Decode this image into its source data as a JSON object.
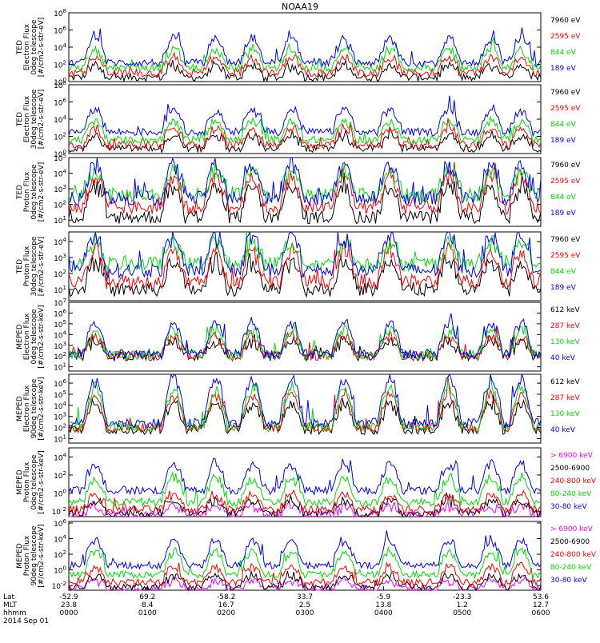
{
  "chart_data": {
    "type": "line",
    "title": "NOAA19",
    "x_ticks": [
      {
        "lat": "-52.9",
        "mlt": "23.8",
        "hhmm": "0000"
      },
      {
        "lat": "69.2",
        "mlt": "8.4",
        "hhmm": "0100"
      },
      {
        "lat": "-58.2",
        "mlt": "16.7",
        "hhmm": "0200"
      },
      {
        "lat": "33.7",
        "mlt": "2.5",
        "hhmm": "0300"
      },
      {
        "lat": "-5.9",
        "mlt": "13.8",
        "hhmm": "0400"
      },
      {
        "lat": "-23.3",
        "mlt": "1.2",
        "hhmm": "0500"
      },
      {
        "lat": "53.6",
        "mlt": "12.7",
        "hhmm": "0600"
      }
    ],
    "x_row_labels": [
      "Lat",
      "MLT",
      "hhmm"
    ],
    "date_label": "2014 Sep 01",
    "x_range_minutes": [
      0,
      360
    ],
    "log_scale_y": true,
    "panels": [
      {
        "ylabel": [
          "TED",
          "Electron Flux",
          "0deg telescope",
          "[#/cm2-s-str-eV]"
        ],
        "y_ticks": [
          "10^0",
          "10^2",
          "10^4",
          "10^6",
          "10^8"
        ],
        "y_log_range": [
          0,
          8
        ],
        "baseline": 2.2,
        "series": [
          {
            "name": "7960 eV",
            "color": "#000000",
            "base": 0.5,
            "amp": 1.2
          },
          {
            "name": "2595 eV",
            "color": "#ff0000",
            "base": 1.0,
            "amp": 1.6
          },
          {
            "name": "844 eV",
            "color": "#00dd00",
            "base": 1.6,
            "amp": 2.0
          },
          {
            "name": "189 eV",
            "color": "#0000ff",
            "base": 2.2,
            "amp": 2.6
          }
        ]
      },
      {
        "ylabel": [
          "TED",
          "Electron Flux",
          "30deg telescope",
          "[#/cm2-s-str-eV]"
        ],
        "y_ticks": [
          "10^0",
          "10^2",
          "10^4",
          "10^6",
          "10^8"
        ],
        "y_log_range": [
          0,
          8
        ],
        "baseline": 2.5,
        "series": [
          {
            "name": "7960 eV",
            "color": "#000000",
            "base": 0.6,
            "amp": 1.3
          },
          {
            "name": "2595 eV",
            "color": "#ff0000",
            "base": 1.0,
            "amp": 1.7
          },
          {
            "name": "844 eV",
            "color": "#00dd00",
            "base": 1.6,
            "amp": 2.0
          },
          {
            "name": "189 eV",
            "color": "#0000ff",
            "base": 2.5,
            "amp": 2.5
          }
        ]
      },
      {
        "ylabel": [
          "TED",
          "Proton Flux",
          "0deg telescope",
          "[#/cm2-s-str-eV]"
        ],
        "y_ticks": [
          "10^1",
          "10^2",
          "10^3",
          "10^4",
          "10^5"
        ],
        "y_log_range": [
          0.6,
          5
        ],
        "baseline": 2.3,
        "series": [
          {
            "name": "7960 eV",
            "color": "#000000",
            "base": 1.2,
            "amp": 1.8
          },
          {
            "name": "2595 eV",
            "color": "#ff0000",
            "base": 1.8,
            "amp": 1.8
          },
          {
            "name": "844 eV",
            "color": "#00dd00",
            "base": 2.6,
            "amp": 1.3
          },
          {
            "name": "189 eV",
            "color": "#0000ff",
            "base": 2.4,
            "amp": 2.0
          }
        ]
      },
      {
        "ylabel": [
          "TED",
          "Proton Flux",
          "30deg telescope",
          "[#/cm2-s-str-eV]"
        ],
        "y_ticks": [
          "10^1",
          "10^2",
          "10^3",
          "10^4"
        ],
        "y_log_range": [
          0.3,
          4.6
        ],
        "baseline": 2.3,
        "series": [
          {
            "name": "7960 eV",
            "color": "#000000",
            "base": 1.0,
            "amp": 1.6
          },
          {
            "name": "2595 eV",
            "color": "#ff0000",
            "base": 1.5,
            "amp": 1.8
          },
          {
            "name": "844 eV",
            "color": "#00dd00",
            "base": 2.6,
            "amp": 1.2
          },
          {
            "name": "189 eV",
            "color": "#0000ff",
            "base": 2.2,
            "amp": 2.0
          }
        ]
      },
      {
        "ylabel": [
          "MEPED",
          "Electron Flux",
          "0deg telescope",
          "[#/cm2-s-str-keV]"
        ],
        "y_ticks": [
          "10^1",
          "10^2",
          "10^3",
          "10^4",
          "10^5",
          "10^6",
          "10^7"
        ],
        "y_log_range": [
          0.6,
          7
        ],
        "baseline": 2.2,
        "series": [
          {
            "name": "612 keV",
            "color": "#000000",
            "base": 2.0,
            "amp": 1.2
          },
          {
            "name": "287 keV",
            "color": "#ff0000",
            "base": 2.0,
            "amp": 1.7
          },
          {
            "name": "130 keV",
            "color": "#00dd00",
            "base": 2.1,
            "amp": 2.2
          },
          {
            "name": "40 keV",
            "color": "#0000ff",
            "base": 2.2,
            "amp": 2.8
          }
        ]
      },
      {
        "ylabel": [
          "MEPED",
          "Electron Flux",
          "90deg telescope",
          "[#/cm2-s-str-keV]"
        ],
        "y_ticks": [
          "10^1",
          "10^2",
          "10^3",
          "10^4",
          "10^5",
          "10^6"
        ],
        "y_log_range": [
          0.6,
          6.8
        ],
        "baseline": 1.8,
        "series": [
          {
            "name": "612 keV",
            "color": "#000000",
            "base": 1.8,
            "amp": 2.2
          },
          {
            "name": "287 keV",
            "color": "#ff0000",
            "base": 2.0,
            "amp": 2.8
          },
          {
            "name": "130 keV",
            "color": "#00dd00",
            "base": 2.1,
            "amp": 3.3
          },
          {
            "name": "40 keV",
            "color": "#0000ff",
            "base": 2.4,
            "amp": 3.8
          }
        ]
      },
      {
        "ylabel": [
          "MEPED",
          "Proton Flux",
          "0deg telescope",
          "[#/cm2-s-str-keV]"
        ],
        "y_ticks": [
          "10^-2",
          "10^0",
          "10^2",
          "10^4"
        ],
        "y_log_range": [
          -2.6,
          5
        ],
        "baseline": -1.0,
        "series": [
          {
            "name": "> 6900 keV",
            "color": "#ff00ff",
            "base": -2.4,
            "amp": 0.8
          },
          {
            "name": "2500-6900",
            "color": "#000000",
            "base": -2.2,
            "amp": 1.2
          },
          {
            "name": "240-800 keV",
            "color": "#ff0000",
            "base": -1.8,
            "amp": 1.5
          },
          {
            "name": "80-240 keV",
            "color": "#00dd00",
            "base": -1.0,
            "amp": 2.5
          },
          {
            "name": "30-80 keV",
            "color": "#0000ff",
            "base": 0.3,
            "amp": 2.8
          }
        ]
      },
      {
        "ylabel": [
          "MEPED",
          "Proton Flux",
          "90deg telescope",
          "[#/cm2-s-str-keV]"
        ],
        "y_ticks": [
          "10^-2",
          "10^0",
          "10^2",
          "10^4",
          "10^6"
        ],
        "y_log_range": [
          -2.6,
          6.2
        ],
        "baseline": -0.4,
        "series": [
          {
            "name": "> 6900 keV",
            "color": "#ff00ff",
            "base": -2.4,
            "amp": 0.9
          },
          {
            "name": "2500-6900",
            "color": "#000000",
            "base": -2.2,
            "amp": 1.3
          },
          {
            "name": "240-800 keV",
            "color": "#ff0000",
            "base": -1.6,
            "amp": 1.8
          },
          {
            "name": "80-240 keV",
            "color": "#00dd00",
            "base": -0.6,
            "amp": 2.8
          },
          {
            "name": "30-80 keV",
            "color": "#0000ff",
            "base": 0.6,
            "amp": 3.0
          }
        ]
      }
    ],
    "passes": [
      20,
      80,
      112,
      140,
      170,
      210,
      245,
      290,
      322,
      345
    ]
  }
}
